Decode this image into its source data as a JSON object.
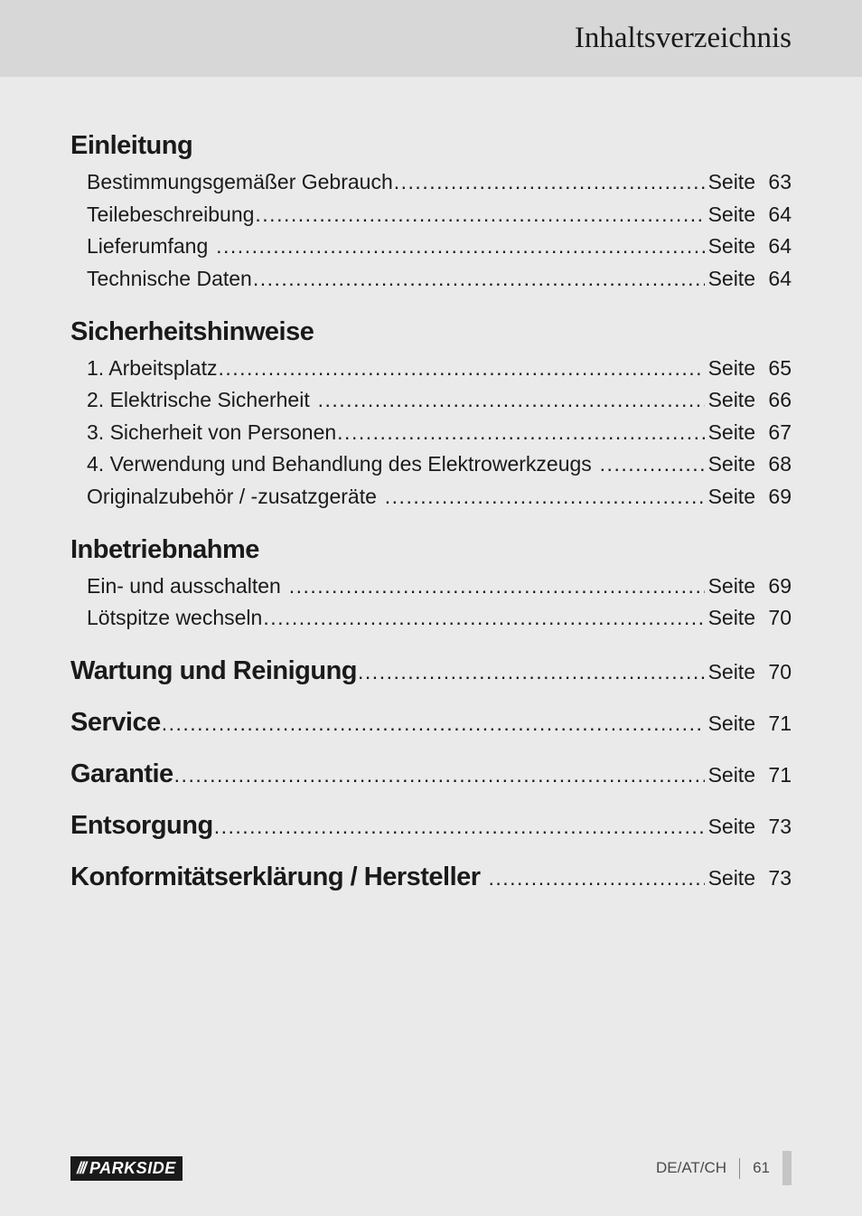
{
  "page": {
    "background_color": "#eaeaea",
    "header_bar_color": "#d7d7d7",
    "text_color": "#1a1a1a",
    "heading_fontsize": 29,
    "body_fontsize": 23,
    "header_title_fontsize": 33
  },
  "header": {
    "title": "Inhaltsverzeichnis"
  },
  "toc": [
    {
      "type": "section",
      "heading": "Einleitung",
      "items": [
        {
          "label": "Bestimmungsgemäßer Gebrauch",
          "page_word": "Seite",
          "page_num": "63"
        },
        {
          "label": "Teilebeschreibung",
          "page_word": "Seite",
          "page_num": "64"
        },
        {
          "label": "Lieferumfang",
          "page_word": "Seite",
          "page_num": "64"
        },
        {
          "label": "Technische Daten",
          "page_word": "Seite",
          "page_num": "64"
        }
      ]
    },
    {
      "type": "section",
      "heading": "Sicherheitshinweise",
      "items": [
        {
          "label": "1. Arbeitsplatz",
          "page_word": "Seite",
          "page_num": "65"
        },
        {
          "label": "2. Elektrische Sicherheit",
          "page_word": "Seite",
          "page_num": "66"
        },
        {
          "label": "3. Sicherheit von Personen",
          "page_word": "Seite",
          "page_num": "67"
        },
        {
          "label": "4. Verwendung und Behandlung des Elektrowerkzeugs",
          "page_word": "Seite",
          "page_num": "68"
        },
        {
          "label": "Originalzubehör / -zusatzgeräte",
          "page_word": "Seite",
          "page_num": "69"
        }
      ]
    },
    {
      "type": "section",
      "heading": "Inbetriebnahme",
      "items": [
        {
          "label": "Ein- und ausschalten",
          "page_word": "Seite",
          "page_num": "69"
        },
        {
          "label": "Lötspitze wechseln",
          "page_word": "Seite",
          "page_num": "70"
        }
      ]
    },
    {
      "type": "inline",
      "heading": "Wartung und Reinigung",
      "page_word": "Seite",
      "page_num": "70"
    },
    {
      "type": "inline",
      "heading": "Service",
      "page_word": "Seite",
      "page_num": "71"
    },
    {
      "type": "inline",
      "heading": "Garantie",
      "page_word": "Seite",
      "page_num": "71"
    },
    {
      "type": "inline",
      "heading": "Entsorgung",
      "page_word": "Seite",
      "page_num": "73"
    },
    {
      "type": "inline",
      "heading": "Konformitätserklärung / Hersteller",
      "page_word": "Seite",
      "page_num": "73"
    }
  ],
  "footer": {
    "logo_text": "PARKSIDE",
    "logo_bg": "#1a1a1a",
    "logo_fg": "#ffffff",
    "region": "DE/AT/CH",
    "page_num": "61",
    "tab_color": "#c5c5c5"
  }
}
